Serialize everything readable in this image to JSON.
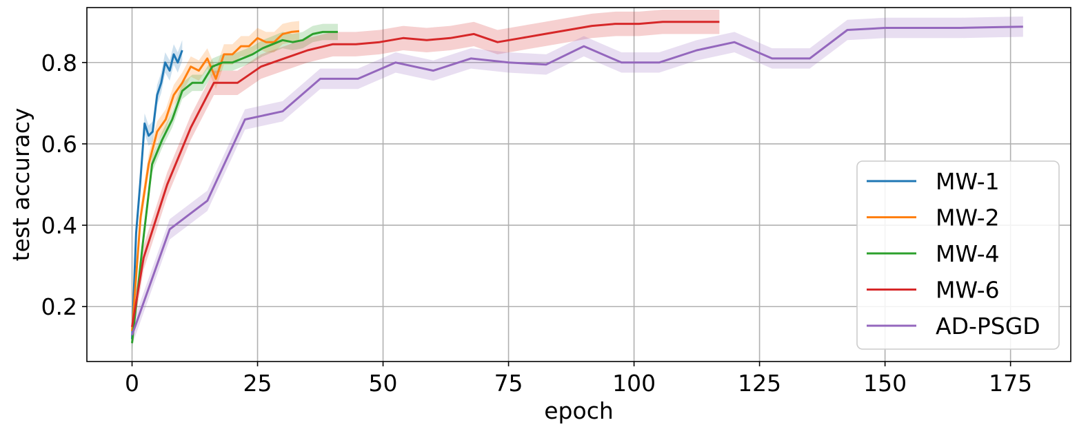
{
  "chart_data": {
    "type": "line",
    "title": "",
    "xlabel": "epoch",
    "ylabel": "test accuracy",
    "xlim": [
      -9,
      187
    ],
    "ylim": [
      0.065,
      0.935
    ],
    "xticks": [
      0,
      25,
      50,
      75,
      100,
      125,
      150,
      175
    ],
    "yticks": [
      0.2,
      0.4,
      0.6,
      0.8
    ],
    "xtick_labels": [
      "0",
      "25",
      "50",
      "75",
      "100",
      "125",
      "150",
      "175"
    ],
    "ytick_labels": [
      "0.2",
      "0.4",
      "0.6",
      "0.8"
    ],
    "grid": true,
    "legend_position": "lower-right",
    "series": [
      {
        "name": "MW-1",
        "color": "#1f77b4",
        "x": [
          0,
          0.8,
          1.6,
          2.5,
          3.3,
          4.1,
          5,
          5.8,
          6.6,
          7.5,
          8.3,
          9.1,
          10
        ],
        "y": [
          0.12,
          0.38,
          0.5,
          0.65,
          0.62,
          0.63,
          0.72,
          0.75,
          0.8,
          0.78,
          0.82,
          0.8,
          0.83
        ],
        "band": 0.025
      },
      {
        "name": "MW-2",
        "color": "#ff7f0e",
        "x": [
          0,
          1.7,
          3.3,
          5,
          6.7,
          8.3,
          10,
          11.7,
          13.3,
          15,
          16.7,
          18.3,
          20,
          21.7,
          23.3,
          25,
          26.7,
          28.3,
          30,
          31.7,
          33.3
        ],
        "y": [
          0.14,
          0.42,
          0.55,
          0.63,
          0.66,
          0.72,
          0.75,
          0.79,
          0.78,
          0.81,
          0.76,
          0.82,
          0.82,
          0.84,
          0.84,
          0.86,
          0.85,
          0.85,
          0.87,
          0.875,
          0.877
        ],
        "band": 0.025
      },
      {
        "name": "MW-4",
        "color": "#2ca02c",
        "x": [
          0,
          2,
          4,
          6,
          8,
          10,
          12,
          14,
          16,
          18,
          20,
          22,
          24,
          26,
          28,
          30,
          32,
          34,
          36,
          38,
          40,
          41
        ],
        "y": [
          0.11,
          0.34,
          0.55,
          0.61,
          0.66,
          0.73,
          0.75,
          0.75,
          0.79,
          0.8,
          0.8,
          0.81,
          0.82,
          0.835,
          0.845,
          0.855,
          0.85,
          0.855,
          0.87,
          0.875,
          0.875,
          0.875
        ],
        "band": 0.02
      },
      {
        "name": "MW-6",
        "color": "#d62728",
        "x": [
          0,
          2.3,
          7,
          11.7,
          16.3,
          21,
          25.7,
          30.3,
          35,
          40,
          44.6,
          49.3,
          54,
          58.7,
          63.4,
          68.1,
          72.8,
          77.5,
          82.2,
          86.9,
          91.6,
          96.3,
          101,
          105.7,
          110.4,
          115.1,
          117
        ],
        "y": [
          0.15,
          0.32,
          0.5,
          0.64,
          0.75,
          0.75,
          0.79,
          0.81,
          0.83,
          0.845,
          0.845,
          0.85,
          0.86,
          0.855,
          0.86,
          0.87,
          0.85,
          0.86,
          0.87,
          0.88,
          0.89,
          0.895,
          0.895,
          0.9,
          0.9,
          0.9,
          0.9
        ],
        "band": 0.03
      },
      {
        "name": "AD-PSGD",
        "color": "#9467bd",
        "x": [
          0,
          7.5,
          15,
          22.5,
          30,
          37.5,
          45,
          52.5,
          60,
          67.5,
          75,
          82.5,
          90,
          97.5,
          105,
          112.5,
          120,
          127.5,
          135,
          142.5,
          150,
          157.5,
          165,
          172.5,
          177.5
        ],
        "y": [
          0.13,
          0.39,
          0.46,
          0.66,
          0.68,
          0.76,
          0.76,
          0.8,
          0.78,
          0.81,
          0.8,
          0.795,
          0.84,
          0.8,
          0.8,
          0.83,
          0.85,
          0.81,
          0.81,
          0.88,
          0.885,
          0.885,
          0.885,
          0.887,
          0.888
        ],
        "band": 0.025
      }
    ]
  }
}
